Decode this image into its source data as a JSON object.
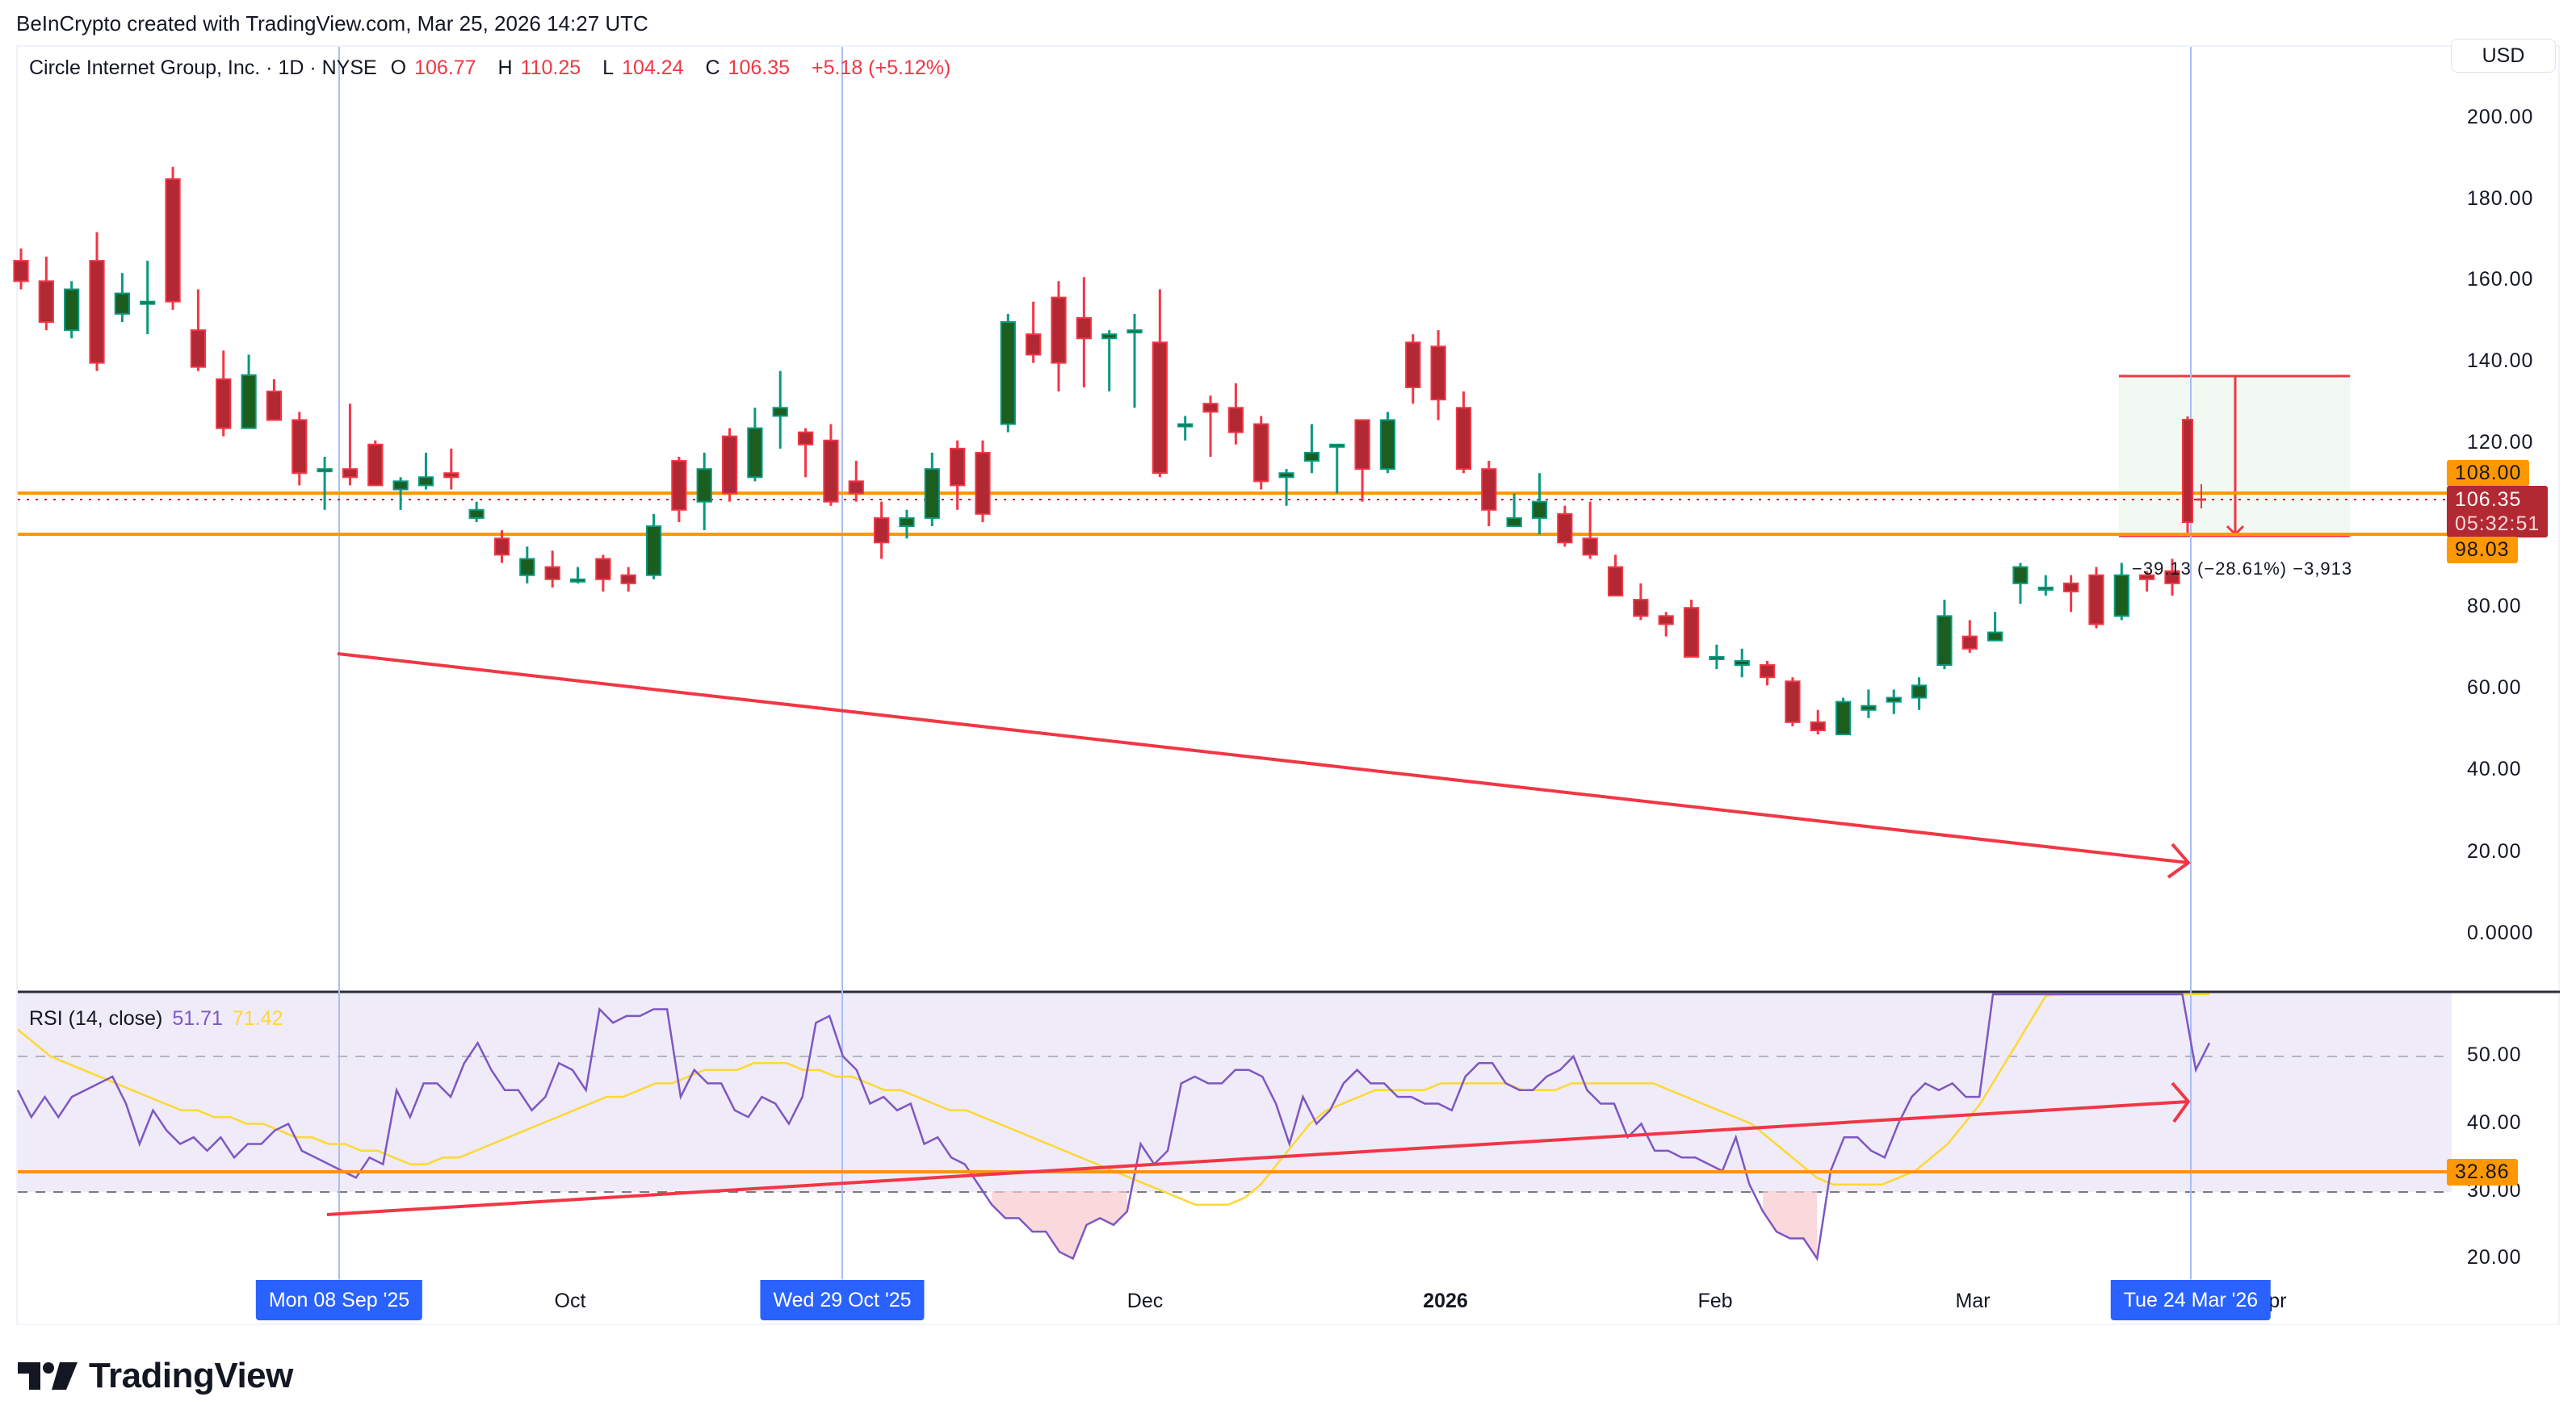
{
  "attribution": "BeInCrypto created with TradingView.com, Mar 25, 2026 14:27 UTC",
  "legend": {
    "symbol": "Circle Internet Group, Inc. · 1D · NYSE",
    "open_label": "O",
    "open": "106.77",
    "high_label": "H",
    "high": "110.25",
    "low_label": "L",
    "low": "104.24",
    "close_label": "C",
    "close": "106.35",
    "change": "+5.18 (+5.12%)"
  },
  "currency_button": "USD",
  "price_axis": {
    "ticks": [
      "200.00",
      "180.00",
      "160.00",
      "140.00",
      "120.00",
      "80.00",
      "60.00",
      "40.00",
      "20.00",
      "0.0000"
    ],
    "badges": {
      "upper_level": "108.00",
      "last_price": "106.35",
      "countdown": "05:32:51",
      "lower_level": "98.03"
    }
  },
  "rsi": {
    "title": "RSI (14, close)",
    "value": "51.71",
    "ma_value": "71.42",
    "axis_ticks": [
      "50.00",
      "40.00",
      "30.00",
      "20.00"
    ],
    "level_badge": "32.86"
  },
  "time_axis": {
    "labels": [
      {
        "text": "Oct",
        "x": 706,
        "bold": false
      },
      {
        "text": "Dec",
        "x": 1418,
        "bold": false
      },
      {
        "text": "2026",
        "x": 1790,
        "bold": true
      },
      {
        "text": "Feb",
        "x": 2124,
        "bold": false
      },
      {
        "text": "Mar",
        "x": 2443,
        "bold": false
      },
      {
        "text": "Apr",
        "x": 2810,
        "bold": false
      }
    ],
    "highlight_badges": [
      {
        "text": "Mon 08 Sep '25",
        "x": 420
      },
      {
        "text": "Wed 29 Oct '25",
        "x": 1043
      },
      {
        "text": "Tue 24 Mar '26",
        "x": 2713
      }
    ]
  },
  "measure_label": "−39.13 (−28.61%) −3,913",
  "logo_text": "TradingView",
  "colors": {
    "up_border": "#089981",
    "up_fill": "#1b5e20",
    "down_border": "#f23645",
    "down_fill": "#b22833",
    "level": "#ff9800",
    "trend": "#f23645",
    "rsi_line": "#7e57c2",
    "rsi_ma": "#fdd835",
    "crosshair": "#a9bdf5",
    "rsi_band": "#efebf8"
  },
  "chart_data": [
    {
      "type": "candlestick",
      "title": "Circle Internet Group, Inc. · 1D · NYSE",
      "ylabel": "USD",
      "ylim": [
        -10,
        215
      ],
      "yticks": [
        0,
        20,
        40,
        60,
        80,
        120,
        140,
        160,
        180,
        200
      ],
      "x_tick_labels": [
        "Oct",
        "Dec",
        "2026",
        "Feb",
        "Mar",
        "Apr"
      ],
      "horizontal_levels": [
        108.0,
        98.03
      ],
      "last_price": 106.35,
      "annotations": [
        {
          "type": "trend_arrow",
          "from": {
            "date": "Mon 08 Sep '25",
            "price": 68
          },
          "to": {
            "date": "Tue 24 Mar '26",
            "price": 15
          },
          "color": "#f23645"
        },
        {
          "type": "price_range",
          "top": 137.16,
          "bottom": 98.03,
          "label": "−39.13 (−28.61%) −3,913"
        },
        {
          "type": "vertical_marker",
          "label": "Mon 08 Sep '25"
        },
        {
          "type": "vertical_marker",
          "label": "Wed 29 Oct '25"
        },
        {
          "type": "vertical_marker",
          "label": "Tue 24 Mar '26"
        }
      ],
      "candles": [
        [
          165,
          160,
          168,
          158
        ],
        [
          160,
          150,
          166,
          148
        ],
        [
          148,
          158,
          160,
          146
        ],
        [
          165,
          140,
          172,
          138
        ],
        [
          152,
          157,
          162,
          150
        ],
        [
          155,
          155,
          165,
          147
        ],
        [
          185,
          155,
          188,
          153
        ],
        [
          148,
          139,
          158,
          138
        ],
        [
          136,
          124,
          143,
          122
        ],
        [
          124,
          137,
          142,
          132
        ],
        [
          133,
          126,
          136,
          126
        ],
        [
          126,
          113,
          128,
          110
        ],
        [
          114,
          114,
          117,
          104
        ],
        [
          114,
          112,
          130,
          110
        ],
        [
          120,
          110,
          121,
          110
        ],
        [
          109,
          111,
          112,
          104
        ],
        [
          110,
          112,
          118,
          109
        ],
        [
          113,
          112,
          119,
          109
        ],
        [
          102,
          104,
          106,
          101
        ],
        [
          97,
          93,
          99,
          91
        ],
        [
          88,
          92,
          95,
          86
        ],
        [
          90,
          87,
          94,
          85
        ],
        [
          87,
          87,
          90,
          86
        ],
        [
          92,
          87,
          93,
          84
        ],
        [
          88,
          86,
          90,
          84
        ],
        [
          88,
          100,
          103,
          87
        ],
        [
          116,
          104,
          117,
          101
        ],
        [
          106,
          114,
          118,
          99
        ],
        [
          122,
          108,
          124,
          106
        ],
        [
          112,
          124,
          129,
          111
        ],
        [
          127,
          129,
          138,
          119
        ],
        [
          123,
          120,
          124,
          112
        ],
        [
          121,
          106,
          125,
          105
        ],
        [
          111,
          108,
          116,
          106
        ],
        [
          102,
          96,
          106,
          92
        ],
        [
          100,
          102,
          104,
          97
        ],
        [
          102,
          114,
          118,
          100
        ],
        [
          119,
          110,
          121,
          104
        ],
        [
          118,
          103,
          121,
          101
        ],
        [
          125,
          150,
          152,
          123
        ],
        [
          147,
          142,
          155,
          140
        ],
        [
          156,
          140,
          160,
          133
        ],
        [
          151,
          146,
          161,
          134
        ],
        [
          146,
          147,
          148,
          133
        ],
        [
          148,
          148,
          152,
          129
        ],
        [
          145,
          113,
          158,
          112
        ],
        [
          125,
          125,
          127,
          121
        ],
        [
          130,
          128,
          132,
          117
        ],
        [
          129,
          123,
          135,
          120
        ],
        [
          125,
          111,
          127,
          109
        ],
        [
          112,
          113,
          114,
          105
        ],
        [
          116,
          118,
          125,
          113
        ],
        [
          120,
          120,
          120,
          108
        ],
        [
          126,
          114,
          126,
          106
        ],
        [
          114,
          126,
          128,
          113
        ],
        [
          145,
          134,
          147,
          130
        ],
        [
          144,
          131,
          148,
          126
        ],
        [
          129,
          114,
          133,
          113
        ],
        [
          114,
          104,
          116,
          100
        ],
        [
          100,
          102,
          108,
          100
        ],
        [
          102,
          106,
          113,
          98
        ],
        [
          103,
          96,
          105,
          95
        ],
        [
          97,
          93,
          106,
          92
        ],
        [
          90,
          83,
          93,
          83
        ],
        [
          82,
          78,
          86,
          77
        ],
        [
          78,
          76,
          79,
          73
        ],
        [
          80,
          68,
          82,
          68
        ],
        [
          68,
          68,
          71,
          65
        ],
        [
          66,
          67,
          70,
          63
        ],
        [
          66,
          63,
          67,
          61
        ],
        [
          62,
          52,
          63,
          51
        ],
        [
          52,
          50,
          55,
          49
        ],
        [
          49,
          57,
          58,
          49
        ],
        [
          55,
          56,
          60,
          53
        ],
        [
          57,
          58,
          60,
          54
        ],
        [
          58,
          61,
          63,
          55
        ],
        [
          66,
          78,
          82,
          65
        ],
        [
          73,
          70,
          77,
          69
        ],
        [
          72,
          74,
          79,
          72
        ],
        [
          86,
          90,
          91,
          81
        ],
        [
          85,
          85,
          88,
          83
        ],
        [
          86,
          84,
          88,
          79
        ],
        [
          88,
          76,
          90,
          75
        ],
        [
          78,
          88,
          91,
          77
        ],
        [
          88,
          87,
          89,
          84
        ],
        [
          89,
          86,
          92,
          83
        ]
      ],
      "candles_format": "[open, close, high, low] — approximate readings of the visible daily candles (left to right, Aug 2025 – Mar 2026)"
    },
    {
      "type": "line",
      "title": "RSI (14, close)",
      "ylim": [
        18,
        60
      ],
      "yticks": [
        20,
        30,
        40,
        50
      ],
      "band": [
        30,
        70
      ],
      "horizontal_levels": [
        32.86
      ],
      "series": [
        {
          "name": "RSI",
          "last_value": 51.71,
          "color": "#7e57c2"
        },
        {
          "name": "RSI-based MA",
          "last_value": 71.42,
          "color": "#fdd835"
        }
      ],
      "annotations": [
        {
          "type": "trend_arrow",
          "from": {
            "date": "Mon 08 Sep '25",
            "rsi": 28
          },
          "to": {
            "date": "Tue 24 Mar '26",
            "rsi": 43
          },
          "color": "#f23645"
        }
      ]
    }
  ]
}
